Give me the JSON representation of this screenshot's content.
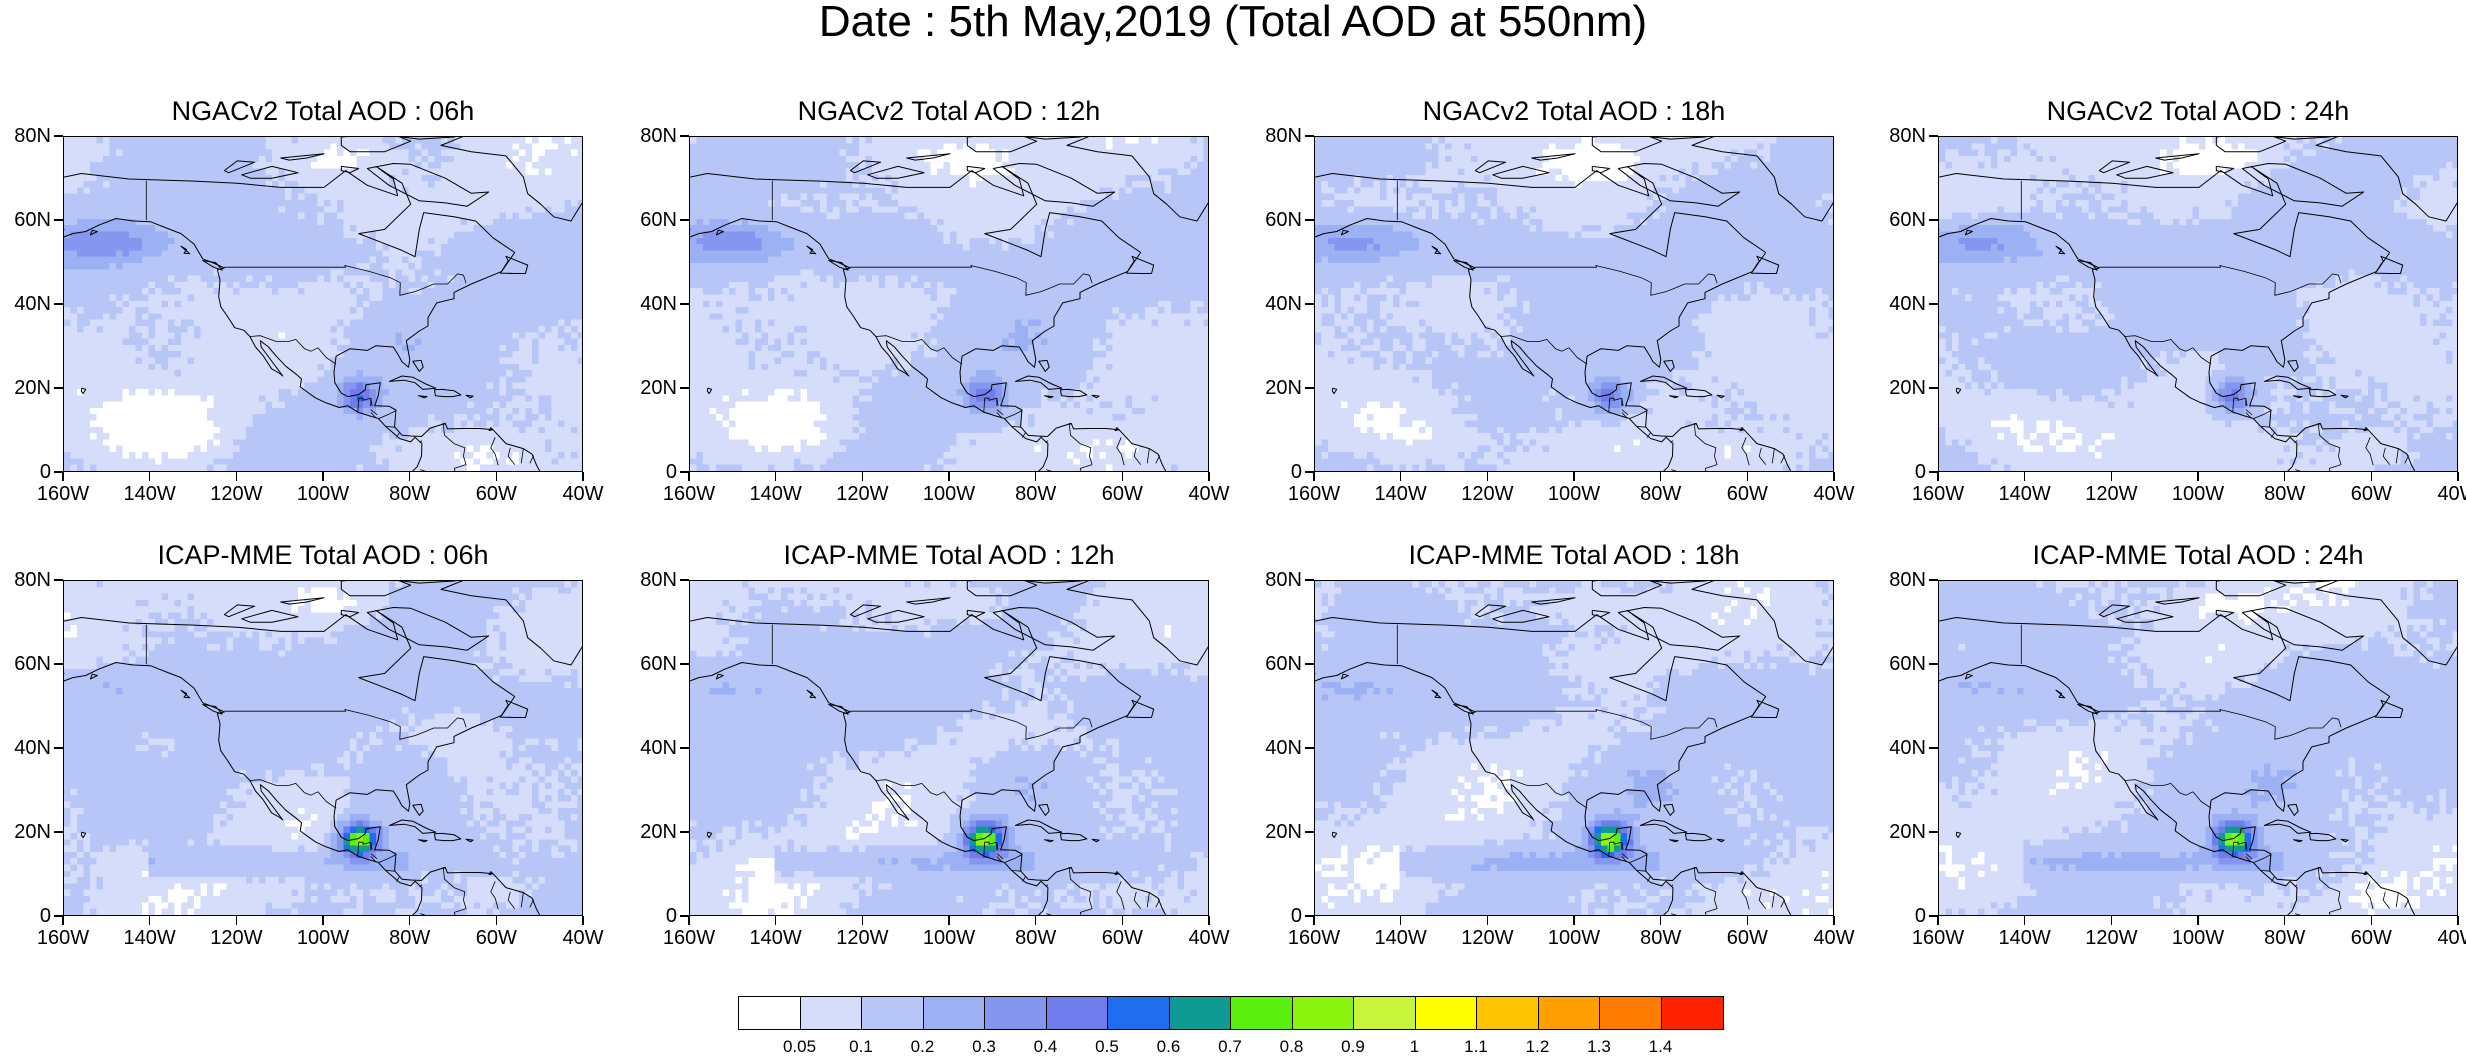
{
  "title": "Date : 5th May,2019 (Total AOD at 550nm)",
  "panels": [
    {
      "title": "NGACv2 Total AOD : 06h",
      "model": "NGAC",
      "hour": 6
    },
    {
      "title": "NGACv2 Total AOD : 12h",
      "model": "NGAC",
      "hour": 12
    },
    {
      "title": "NGACv2 Total AOD : 18h",
      "model": "NGAC",
      "hour": 18
    },
    {
      "title": "NGACv2 Total AOD : 24h",
      "model": "NGAC",
      "hour": 24
    },
    {
      "title": "ICAP-MME Total AOD : 06h",
      "model": "ICAP",
      "hour": 6
    },
    {
      "title": "ICAP-MME Total AOD : 12h",
      "model": "ICAP",
      "hour": 12
    },
    {
      "title": "ICAP-MME Total AOD : 18h",
      "model": "ICAP",
      "hour": 18
    },
    {
      "title": "ICAP-MME Total AOD : 24h",
      "model": "ICAP",
      "hour": 24
    }
  ],
  "axes": {
    "lat_labels": [
      "80N",
      "60N",
      "40N",
      "20N",
      "0"
    ],
    "lon_labels": [
      "160W",
      "140W",
      "120W",
      "100W",
      "80W",
      "60W",
      "40W"
    ],
    "lat_range": [
      0,
      80
    ],
    "lon_range": [
      -160,
      -40
    ]
  },
  "colorbar": {
    "labels": [
      "0.05",
      "0.1",
      "0.2",
      "0.3",
      "0.4",
      "0.5",
      "0.6",
      "0.7",
      "0.8",
      "0.9",
      "1",
      "1.1",
      "1.2",
      "1.3",
      "1.4"
    ],
    "colors": [
      "#ffffff",
      "#d5ddfb",
      "#b8c6f7",
      "#9cb0f4",
      "#8596f0",
      "#6f7ded",
      "#1f6ef0",
      "#0f9a94",
      "#5cf00f",
      "#8cf50f",
      "#c8f53c",
      "#ffff00",
      "#ffc400",
      "#ffa000",
      "#ff7a00",
      "#ff2200"
    ]
  }
}
